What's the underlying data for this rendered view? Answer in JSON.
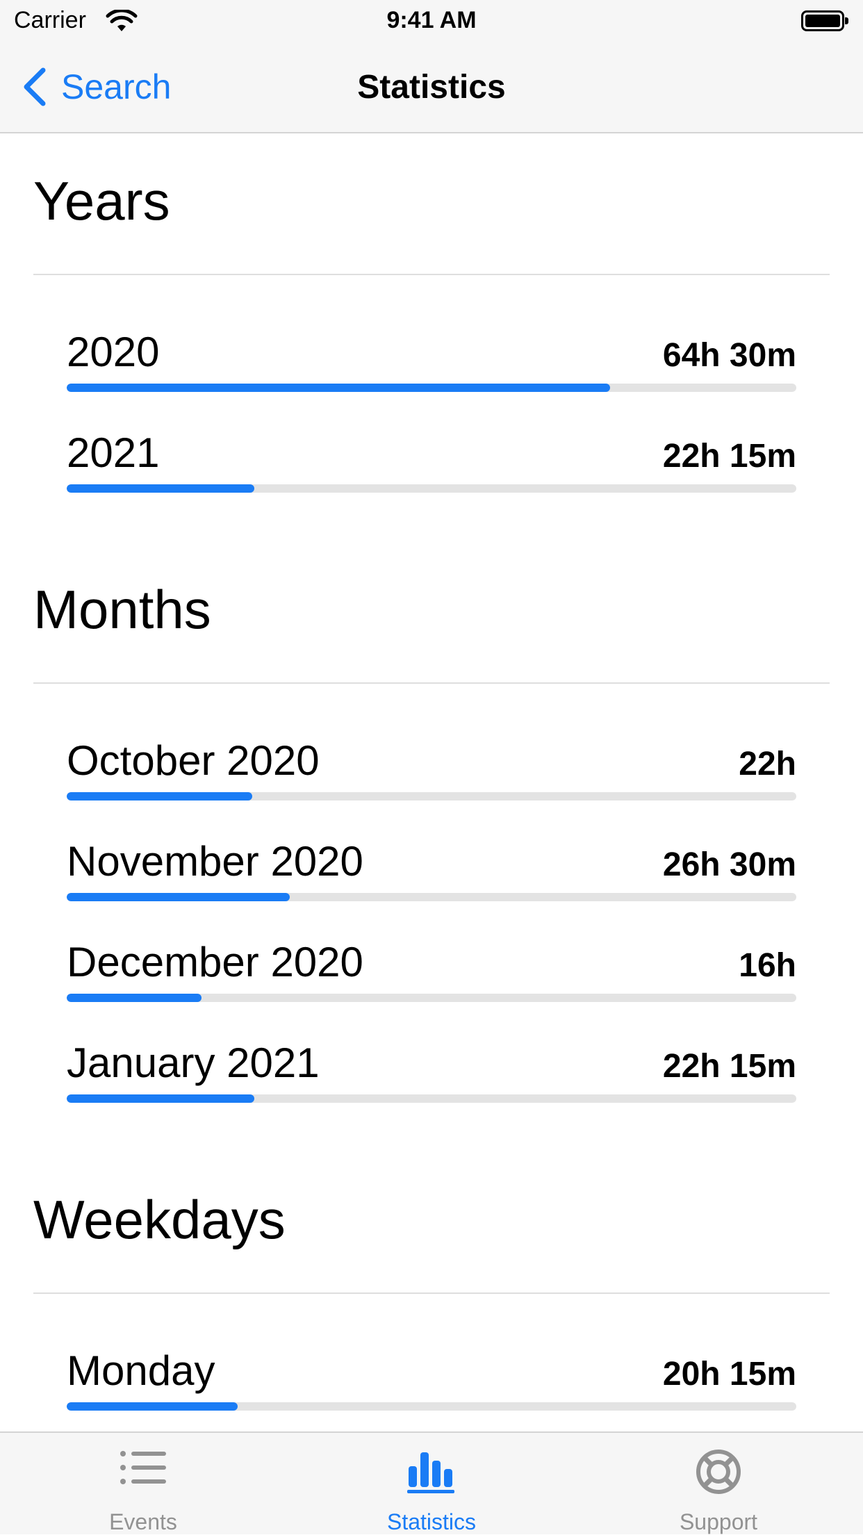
{
  "status_bar": {
    "carrier": "Carrier",
    "time": "9:41 AM"
  },
  "nav": {
    "back_label": "Search",
    "title": "Statistics"
  },
  "sections": {
    "years": {
      "title": "Years",
      "rows": [
        {
          "label": "2020",
          "value": "64h 30m",
          "progress": 0.745
        },
        {
          "label": "2021",
          "value": "22h 15m",
          "progress": 0.257
        }
      ]
    },
    "months": {
      "title": "Months",
      "rows": [
        {
          "label": "October 2020",
          "value": "22h",
          "progress": 0.254
        },
        {
          "label": "November 2020",
          "value": "26h 30m",
          "progress": 0.306
        },
        {
          "label": "December 2020",
          "value": "16h",
          "progress": 0.185
        },
        {
          "label": "January 2021",
          "value": "22h 15m",
          "progress": 0.257
        }
      ]
    },
    "weekdays": {
      "title": "Weekdays",
      "rows": [
        {
          "label": "Monday",
          "value": "20h 15m",
          "progress": 0.234
        }
      ]
    }
  },
  "tab_bar": {
    "tabs": [
      {
        "label": "Events",
        "icon": "list-icon",
        "active": false
      },
      {
        "label": "Statistics",
        "icon": "bar-chart-icon",
        "active": true
      },
      {
        "label": "Support",
        "icon": "lifebuoy-icon",
        "active": false
      }
    ]
  },
  "colors": {
    "accent": "#1a7cf5",
    "track": "#e3e3e3",
    "inactive_tab": "#929292"
  }
}
